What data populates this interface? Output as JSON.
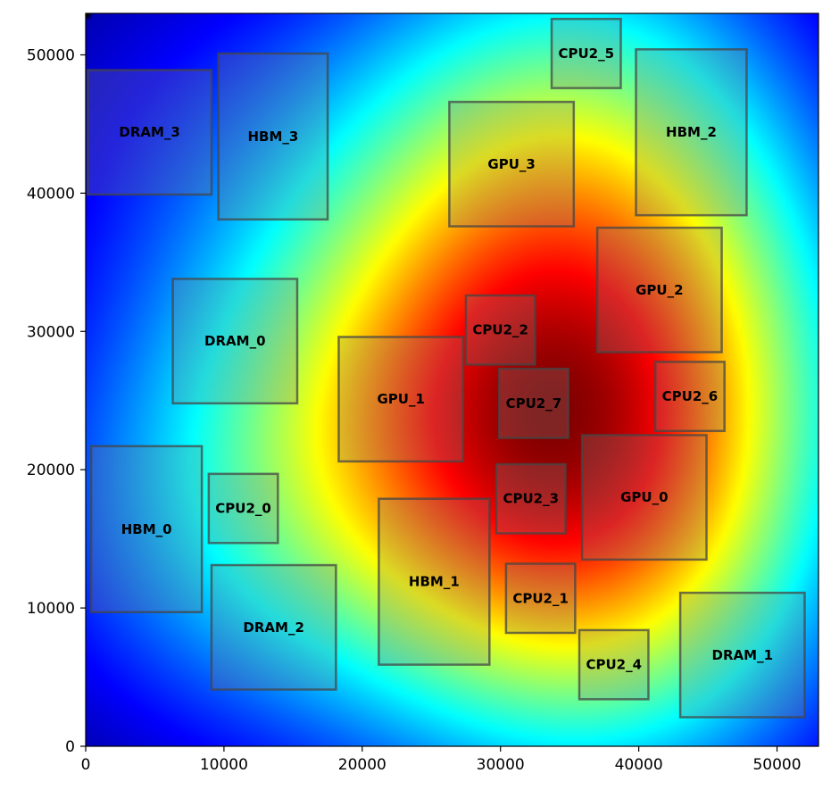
{
  "chart_data": {
    "type": "heatmap",
    "description_kind": "floorplan-thermal-map",
    "colormap": "jet",
    "xlim": [
      0,
      53000
    ],
    "ylim": [
      0,
      53000
    ],
    "x_ticks": [
      0,
      10000,
      20000,
      30000,
      40000,
      50000
    ],
    "y_ticks": [
      0,
      10000,
      20000,
      30000,
      40000,
      50000
    ],
    "x_tick_labels": [
      "0",
      "10000",
      "20000",
      "30000",
      "40000",
      "50000"
    ],
    "y_tick_labels": [
      "0",
      "10000",
      "20000",
      "30000",
      "40000",
      "50000"
    ],
    "grid": false,
    "blocks": [
      {
        "name": "DRAM_3",
        "x0": 150,
        "x1": 9100,
        "y0": 39900,
        "y1": 48900
      },
      {
        "name": "HBM_3",
        "x0": 9600,
        "x1": 17500,
        "y0": 38100,
        "y1": 50100
      },
      {
        "name": "CPU2_5",
        "x0": 33700,
        "x1": 38700,
        "y0": 47600,
        "y1": 52600
      },
      {
        "name": "GPU_3",
        "x0": 26300,
        "x1": 35300,
        "y0": 37600,
        "y1": 46600
      },
      {
        "name": "HBM_2",
        "x0": 39800,
        "x1": 47800,
        "y0": 38400,
        "y1": 50400
      },
      {
        "name": "GPU_2",
        "x0": 37000,
        "x1": 46000,
        "y0": 28500,
        "y1": 37500
      },
      {
        "name": "DRAM_0",
        "x0": 6300,
        "x1": 15300,
        "y0": 24800,
        "y1": 33800
      },
      {
        "name": "CPU2_2",
        "x0": 27500,
        "x1": 32500,
        "y0": 27600,
        "y1": 32600
      },
      {
        "name": "GPU_1",
        "x0": 18300,
        "x1": 27300,
        "y0": 20600,
        "y1": 29600
      },
      {
        "name": "CPU2_7",
        "x0": 29900,
        "x1": 34900,
        "y0": 22300,
        "y1": 27300
      },
      {
        "name": "CPU2_6",
        "x0": 41200,
        "x1": 46200,
        "y0": 22800,
        "y1": 27800
      },
      {
        "name": "HBM_0",
        "x0": 400,
        "x1": 8400,
        "y0": 9700,
        "y1": 21700
      },
      {
        "name": "CPU2_0",
        "x0": 8900,
        "x1": 13900,
        "y0": 14700,
        "y1": 19700
      },
      {
        "name": "CPU2_3",
        "x0": 29700,
        "x1": 34700,
        "y0": 15400,
        "y1": 20400
      },
      {
        "name": "GPU_0",
        "x0": 35900,
        "x1": 44900,
        "y0": 13500,
        "y1": 22500
      },
      {
        "name": "HBM_1",
        "x0": 21200,
        "x1": 29200,
        "y0": 5900,
        "y1": 17900
      },
      {
        "name": "CPU2_1",
        "x0": 30400,
        "x1": 35400,
        "y0": 8200,
        "y1": 13200
      },
      {
        "name": "DRAM_2",
        "x0": 9100,
        "x1": 18100,
        "y0": 4100,
        "y1": 13100
      },
      {
        "name": "CPU2_4",
        "x0": 35700,
        "x1": 40700,
        "y0": 3400,
        "y1": 8400
      },
      {
        "name": "DRAM_1",
        "x0": 43000,
        "x1": 52000,
        "y0": 2100,
        "y1": 11100
      }
    ]
  }
}
